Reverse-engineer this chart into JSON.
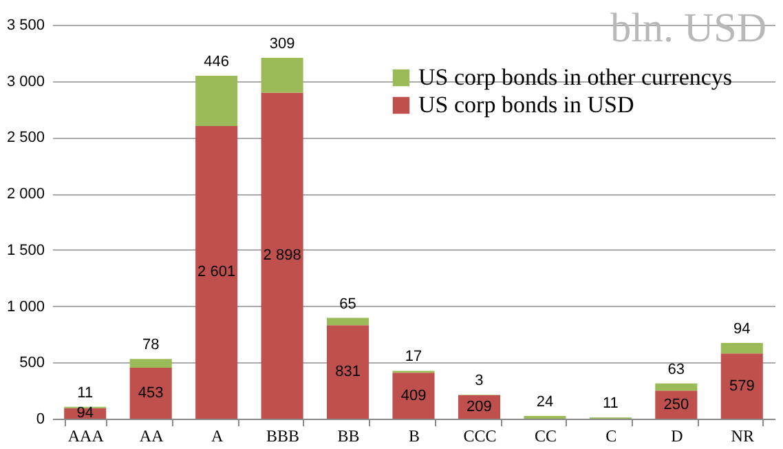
{
  "chart_data": {
    "type": "bar",
    "stacked": true,
    "categories": [
      "AAA",
      "AA",
      "A",
      "BBB",
      "BB",
      "B",
      "CCC",
      "CC",
      "C",
      "D",
      "NR"
    ],
    "series": [
      {
        "name": "US corp bonds in USD",
        "color": "#c0504d",
        "values": [
          94,
          453,
          2601,
          2898,
          831,
          409,
          209,
          null,
          null,
          250,
          579
        ],
        "value_labels": [
          "94",
          "453",
          "2 601",
          "2 898",
          "831",
          "409",
          "209",
          null,
          null,
          "250",
          "579"
        ]
      },
      {
        "name": "US corp bonds in other currencys",
        "color": "#9bbb59",
        "values": [
          11,
          78,
          446,
          309,
          65,
          17,
          3,
          24,
          11,
          63,
          94
        ],
        "value_labels": [
          "11",
          "78",
          "446",
          "309",
          "65",
          "17",
          "3",
          "24",
          "11",
          "63",
          "94"
        ]
      }
    ],
    "ylim": [
      0,
      3500
    ],
    "yticks": [
      0,
      {
        "value": 500,
        "label": "500"
      },
      {
        "value": 1000,
        "label": "1 000"
      },
      {
        "value": 1500,
        "label": "1 500"
      },
      {
        "value": 2000,
        "label": "2 000"
      },
      {
        "value": 2500,
        "label": "2 500"
      },
      {
        "value": 3000,
        "label": "3 000"
      },
      {
        "value": 3500,
        "label": "3 500"
      }
    ],
    "grid": "y",
    "legend": "top right",
    "annotations": [
      "bln. USD"
    ]
  }
}
